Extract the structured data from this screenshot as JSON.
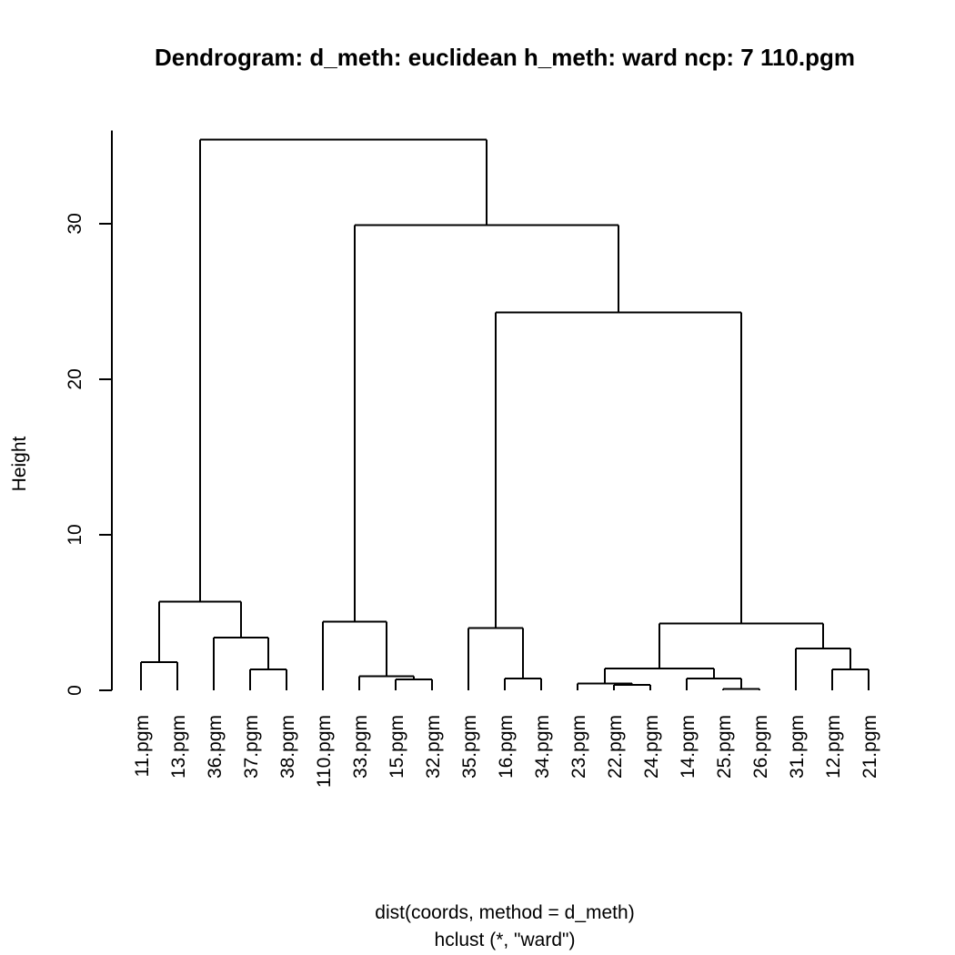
{
  "chart_data": {
    "type": "dendrogram",
    "title": "Dendrogram: d_meth: euclidean h_meth: ward ncp: 7 110.pgm",
    "ylabel": "Height",
    "xlabel": "dist(coords, method = d_meth)",
    "sublabel": "hclust (*, \"ward\")",
    "ylim": [
      0,
      36
    ],
    "yticks": [
      0,
      10,
      20,
      30
    ],
    "leaves": [
      "11.pgm",
      "13.pgm",
      "36.pgm",
      "37.pgm",
      "38.pgm",
      "110.pgm",
      "33.pgm",
      "15.pgm",
      "32.pgm",
      "35.pgm",
      "16.pgm",
      "34.pgm",
      "23.pgm",
      "22.pgm",
      "24.pgm",
      "14.pgm",
      "25.pgm",
      "26.pgm",
      "31.pgm",
      "12.pgm",
      "21.pgm"
    ],
    "merges": [
      {
        "left": "L17",
        "right": "L18",
        "height": 0.1
      },
      {
        "left": "L14",
        "right": "L15",
        "height": 0.3
      },
      {
        "left": "L13",
        "right": "M2",
        "height": 0.4
      },
      {
        "left": "L09",
        "right": "M0",
        "height": 0.0
      },
      {
        "left": "L16",
        "right": "M1",
        "height": 0.7
      },
      {
        "left": "L08",
        "right": "L09b",
        "height": 0.7
      },
      {
        "left": "L11",
        "right": "L12",
        "height": 0.75
      },
      {
        "left": "L07",
        "right": "M6",
        "height": 0.9
      },
      {
        "left": "L04",
        "right": "L05",
        "height": 1.3
      },
      {
        "left": "L20",
        "right": "L21",
        "height": 1.35
      },
      {
        "left": "M3",
        "right": "M5",
        "height": 1.4
      },
      {
        "left": "L01",
        "right": "L02",
        "height": 1.8
      },
      {
        "left": "L19",
        "right": "M10",
        "height": 2.7
      },
      {
        "left": "L03",
        "right": "M9",
        "height": 3.4
      },
      {
        "left": "L10",
        "right": "M7",
        "height": 4.0
      },
      {
        "left": "M11",
        "right": "M13",
        "height": 4.3
      },
      {
        "left": "L06",
        "right": "M8",
        "height": 4.4
      },
      {
        "left": "M12",
        "right": "M14",
        "height": 5.7
      },
      {
        "left": "M16",
        "right": "M17",
        "height": 24.3
      },
      {
        "left": "M18",
        "right": "M19",
        "height": 29.9
      },
      {
        "left": "M15",
        "right": "M20",
        "height": 35.4
      }
    ],
    "tree": {
      "h": 35.4,
      "c": [
        {
          "h": 5.7,
          "c": [
            {
              "h": 1.8,
              "c": [
                {
                  "l": 0
                },
                {
                  "l": 1
                }
              ]
            },
            {
              "h": 3.4,
              "c": [
                {
                  "l": 2
                },
                {
                  "h": 1.35,
                  "c": [
                    {
                      "l": 3
                    },
                    {
                      "l": 4
                    }
                  ]
                }
              ]
            }
          ]
        },
        {
          "h": 29.9,
          "c": [
            {
              "h": 4.4,
              "c": [
                {
                  "l": 5
                },
                {
                  "h": 0.9,
                  "c": [
                    {
                      "l": 6
                    },
                    {
                      "h": 0.7,
                      "c": [
                        {
                          "l": 7
                        },
                        {
                          "l": 8
                        }
                      ]
                    }
                  ]
                }
              ]
            },
            {
              "h": 24.3,
              "c": [
                {
                  "h": 4.0,
                  "c": [
                    {
                      "l": 9
                    },
                    {
                      "h": 0.75,
                      "c": [
                        {
                          "l": 10
                        },
                        {
                          "l": 11
                        }
                      ]
                    }
                  ]
                },
                {
                  "h": 4.3,
                  "c": [
                    {
                      "h": 1.4,
                      "c": [
                        {
                          "h": 0.45,
                          "c": [
                            {
                              "l": 12
                            },
                            {
                              "h": 0.35,
                              "c": [
                                {
                                  "l": 13
                                },
                                {
                                  "l": 14
                                }
                              ]
                            }
                          ]
                        },
                        {
                          "h": 0.75,
                          "c": [
                            {
                              "l": 15
                            },
                            {
                              "h": 0.1,
                              "c": [
                                {
                                  "l": 16
                                },
                                {
                                  "l": 17
                                }
                              ]
                            }
                          ]
                        }
                      ]
                    },
                    {
                      "h": 2.7,
                      "c": [
                        {
                          "l": 18
                        },
                        {
                          "h": 1.35,
                          "c": [
                            {
                              "l": 19
                            },
                            {
                              "l": 20
                            }
                          ]
                        }
                      ]
                    }
                  ]
                }
              ]
            }
          ]
        }
      ]
    }
  }
}
